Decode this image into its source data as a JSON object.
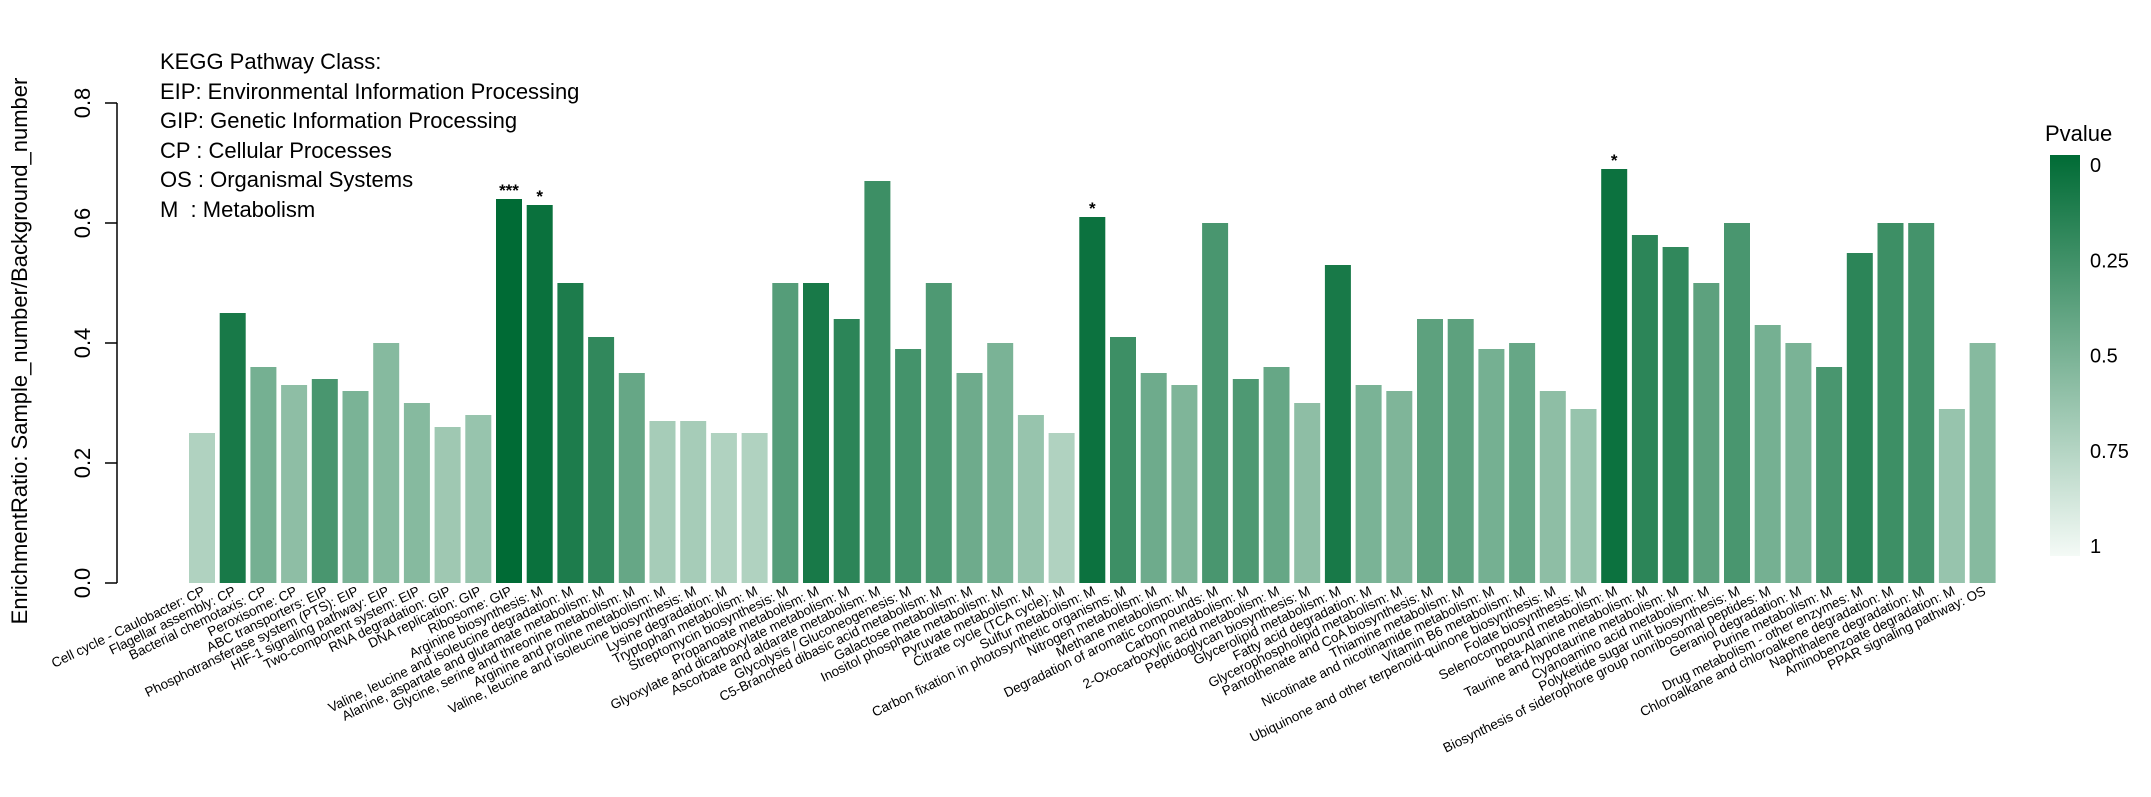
{
  "chart_data": {
    "type": "bar",
    "ylabel": "EnrichmentRatio: Sample_number/Background_number",
    "ylim": [
      0,
      0.8
    ],
    "yticks": [
      "0.0",
      "0.2",
      "0.4",
      "0.6",
      "0.8"
    ],
    "legend": {
      "title": "KEGG Pathway Class:",
      "entries": [
        "EIP: Environmental Information Processing",
        "GIP: Genetic Information Processing",
        "CP : Cellular Processes",
        "OS : Organismal Systems",
        "M  : Metabolism"
      ]
    },
    "colorbar": {
      "title": "Pvalue",
      "ticks": [
        "0",
        "0.25",
        "0.5",
        "0.75",
        "1"
      ],
      "high_color": "#006b35",
      "low_color": "#f4faf6"
    },
    "bars": [
      {
        "label": "Cell cycle - Caulobacter:  CP",
        "value": 0.25,
        "pvalue": 0.72,
        "star": ""
      },
      {
        "label": "Flagellar assembly:  CP",
        "value": 0.45,
        "pvalue": 0.1,
        "star": ""
      },
      {
        "label": "Bacterial chemotaxis:  CP",
        "value": 0.36,
        "pvalue": 0.48,
        "star": ""
      },
      {
        "label": "Peroxisome:  CP",
        "value": 0.33,
        "pvalue": 0.58,
        "star": ""
      },
      {
        "label": "ABC transporters:  EIP",
        "value": 0.34,
        "pvalue": 0.3,
        "star": ""
      },
      {
        "label": "Phosphotransferase system (PTS):  EIP",
        "value": 0.32,
        "pvalue": 0.5,
        "star": ""
      },
      {
        "label": "HIF-1 signaling pathway:  EIP",
        "value": 0.4,
        "pvalue": 0.55,
        "star": ""
      },
      {
        "label": "Two-component system:  EIP",
        "value": 0.3,
        "pvalue": 0.55,
        "star": ""
      },
      {
        "label": "RNA degradation:  GIP",
        "value": 0.26,
        "pvalue": 0.65,
        "star": ""
      },
      {
        "label": "DNA replication:  GIP",
        "value": 0.28,
        "pvalue": 0.62,
        "star": ""
      },
      {
        "label": "Ribosome:  GIP",
        "value": 0.64,
        "pvalue": 0.0,
        "star": "***"
      },
      {
        "label": "Arginine biosynthesis:  M",
        "value": 0.63,
        "pvalue": 0.04,
        "star": "*"
      },
      {
        "label": "Valine, leucine and isoleucine degradation:  M",
        "value": 0.5,
        "pvalue": 0.12,
        "star": ""
      },
      {
        "label": "Alanine, aspartate and glutamate metabolism:  M",
        "value": 0.41,
        "pvalue": 0.2,
        "star": ""
      },
      {
        "label": "Glycine, serine and threonine metabolism:  M",
        "value": 0.35,
        "pvalue": 0.42,
        "star": ""
      },
      {
        "label": "Arginine and proline metabolism:  M",
        "value": 0.27,
        "pvalue": 0.68,
        "star": ""
      },
      {
        "label": "Valine, leucine and isoleucine biosynthesis:  M",
        "value": 0.27,
        "pvalue": 0.68,
        "star": ""
      },
      {
        "label": "Lysine degradation:  M",
        "value": 0.25,
        "pvalue": 0.72,
        "star": ""
      },
      {
        "label": "Tryptophan metabolism:  M",
        "value": 0.25,
        "pvalue": 0.72,
        "star": ""
      },
      {
        "label": "Streptomycin biosynthesis:  M",
        "value": 0.5,
        "pvalue": 0.35,
        "star": ""
      },
      {
        "label": "Propanoate metabolism:  M",
        "value": 0.5,
        "pvalue": 0.1,
        "star": ""
      },
      {
        "label": "Glyoxylate and dicarboxylate metabolism:  M",
        "value": 0.44,
        "pvalue": 0.18,
        "star": ""
      },
      {
        "label": "Ascorbate and aldarate metabolism:  M",
        "value": 0.67,
        "pvalue": 0.25,
        "star": ""
      },
      {
        "label": "Glycolysis / Gluconeogenesis:  M",
        "value": 0.39,
        "pvalue": 0.28,
        "star": ""
      },
      {
        "label": "C5-Branched dibasic acid metabolism:  M",
        "value": 0.5,
        "pvalue": 0.32,
        "star": ""
      },
      {
        "label": "Galactose metabolism:  M",
        "value": 0.35,
        "pvalue": 0.45,
        "star": ""
      },
      {
        "label": "Inositol phosphate metabolism:  M",
        "value": 0.4,
        "pvalue": 0.5,
        "star": ""
      },
      {
        "label": "Pyruvate metabolism:  M",
        "value": 0.28,
        "pvalue": 0.62,
        "star": ""
      },
      {
        "label": "Citrate cycle (TCA cycle):  M",
        "value": 0.25,
        "pvalue": 0.72,
        "star": ""
      },
      {
        "label": "Sulfur metabolism:  M",
        "value": 0.61,
        "pvalue": 0.05,
        "star": "*"
      },
      {
        "label": "Carbon fixation in photosynthetic organisms:  M",
        "value": 0.41,
        "pvalue": 0.25,
        "star": ""
      },
      {
        "label": "Nitrogen metabolism:  M",
        "value": 0.35,
        "pvalue": 0.45,
        "star": ""
      },
      {
        "label": "Methane metabolism:  M",
        "value": 0.33,
        "pvalue": 0.52,
        "star": ""
      },
      {
        "label": "Degradation of aromatic compounds:  M",
        "value": 0.6,
        "pvalue": 0.3,
        "star": ""
      },
      {
        "label": "Carbon metabolism:  M",
        "value": 0.34,
        "pvalue": 0.32,
        "star": ""
      },
      {
        "label": "2-Oxocarboxylic acid metabolism:  M",
        "value": 0.36,
        "pvalue": 0.42,
        "star": ""
      },
      {
        "label": "Peptidoglycan biosynthesis:  M",
        "value": 0.3,
        "pvalue": 0.58,
        "star": ""
      },
      {
        "label": "Glycerolipid metabolism:  M",
        "value": 0.53,
        "pvalue": 0.1,
        "star": ""
      },
      {
        "label": "Fatty acid degradation:  M",
        "value": 0.33,
        "pvalue": 0.5,
        "star": ""
      },
      {
        "label": "Glycerophospholipid metabolism:  M",
        "value": 0.32,
        "pvalue": 0.52,
        "star": ""
      },
      {
        "label": "Pantothenate and CoA biosynthesis:  M",
        "value": 0.44,
        "pvalue": 0.38,
        "star": ""
      },
      {
        "label": "Thiamine metabolism:  M",
        "value": 0.44,
        "pvalue": 0.38,
        "star": ""
      },
      {
        "label": "Nicotinate and nicotinamide metabolism:  M",
        "value": 0.39,
        "pvalue": 0.48,
        "star": ""
      },
      {
        "label": "Vitamin B6 metabolism:  M",
        "value": 0.4,
        "pvalue": 0.42,
        "star": ""
      },
      {
        "label": "Ubiquinone and other terpenoid-quinone biosynthesis:  M",
        "value": 0.32,
        "pvalue": 0.58,
        "star": ""
      },
      {
        "label": "Folate biosynthesis:  M",
        "value": 0.29,
        "pvalue": 0.62,
        "star": ""
      },
      {
        "label": "Selenocompound metabolism:  M",
        "value": 0.69,
        "pvalue": 0.05,
        "star": "*"
      },
      {
        "label": "beta-Alanine metabolism:  M",
        "value": 0.58,
        "pvalue": 0.18,
        "star": ""
      },
      {
        "label": "Taurine and hypotaurine metabolism:  M",
        "value": 0.56,
        "pvalue": 0.2,
        "star": ""
      },
      {
        "label": "Cyanoamino acid metabolism:  M",
        "value": 0.5,
        "pvalue": 0.38,
        "star": ""
      },
      {
        "label": "Polyketide sugar unit biosynthesis:  M",
        "value": 0.6,
        "pvalue": 0.3,
        "star": ""
      },
      {
        "label": "Biosynthesis of siderophore group nonribosomal peptides:  M",
        "value": 0.43,
        "pvalue": 0.48,
        "star": ""
      },
      {
        "label": "Geraniol degradation:  M",
        "value": 0.4,
        "pvalue": 0.5,
        "star": ""
      },
      {
        "label": "Purine metabolism:  M",
        "value": 0.36,
        "pvalue": 0.3,
        "star": ""
      },
      {
        "label": "Drug metabolism - other enzymes:  M",
        "value": 0.55,
        "pvalue": 0.18,
        "star": ""
      },
      {
        "label": "Chloroalkane and chloroalkene degradation:  M",
        "value": 0.6,
        "pvalue": 0.25,
        "star": ""
      },
      {
        "label": "Naphthalene degradation:  M",
        "value": 0.6,
        "pvalue": 0.28,
        "star": ""
      },
      {
        "label": "Aminobenzoate degradation:  M",
        "value": 0.29,
        "pvalue": 0.62,
        "star": ""
      },
      {
        "label": "PPAR signaling pathway:  OS",
        "value": 0.4,
        "pvalue": 0.55,
        "star": ""
      }
    ]
  }
}
